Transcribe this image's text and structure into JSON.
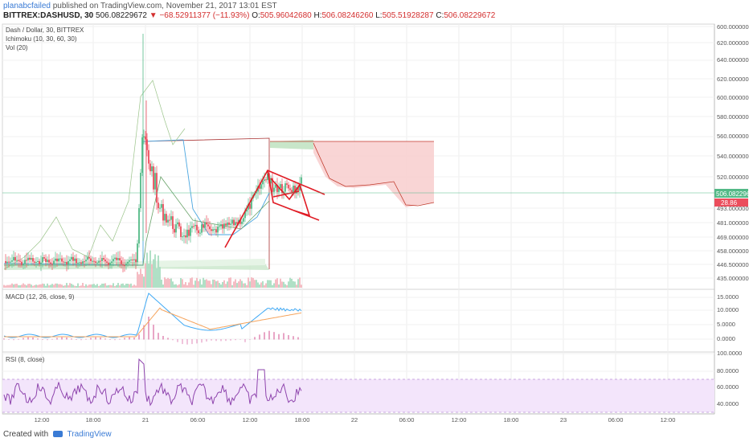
{
  "header": {
    "user": "planabcfailed",
    "published": "published on TradingView.com, November 21, 2017 13:01 EST",
    "symbol": "BITTREX:DASHUSD, 30",
    "price": "506.08229672",
    "change": "▼ −68.52911377 (−11.93%)",
    "o_label": "O:",
    "o_value": "505.96042680",
    "h_label": "H:",
    "h_value": "506.08246260",
    "l_label": "L:",
    "l_value": "505.51928287",
    "c_label": "C:",
    "c_value": "506.08229672"
  },
  "legend": {
    "title": "Dash / Dollar, 30, BITTREX",
    "ichimoku": "Ichimoku (10, 30, 60, 30)",
    "vol": "Vol (20)",
    "macd": "MACD (12, 26, close, 9)",
    "rsi": "RSI (8, close)"
  },
  "footer": {
    "created_with": "Created with",
    "brand": "TradingView"
  },
  "colors": {
    "up": "#53b987",
    "down": "#eb4d5c",
    "pattern": "#e01b24",
    "macd_line": "#3fa9f5",
    "signal_line": "#f5a45d",
    "rsi": "#8e44ad",
    "cloud_bull": "#c8e6c9",
    "cloud_bear": "#f8d0d0"
  },
  "chart_data": {
    "type": "candlestick",
    "price_axis": {
      "ticks": [
        "600.00000000",
        "580.00000000",
        "560.00000000",
        "540.00000000",
        "520.00000000",
        "493.00000000",
        "481.00000000",
        "469.00000000",
        "458.00000000",
        "446.50000000",
        "435.00000000"
      ],
      "top_tick": "600.00000000",
      "current_price_label": "506.08229672",
      "current_volume_label": "28.86"
    },
    "macd_axis": {
      "ticks": [
        "15.0000",
        "10.0000",
        "5.0000",
        "0.0000"
      ]
    },
    "rsi_axis": {
      "ticks": [
        "80.0000",
        "60.0000",
        "40.0000"
      ]
    },
    "time_axis": [
      "12:00",
      "18:00",
      "21",
      "06:00",
      "12:00",
      "18:00",
      "22",
      "06:00",
      "12:00",
      "18:00",
      "23",
      "06:00",
      "12:00"
    ],
    "approx_range": {
      "low": 435,
      "high": 600
    },
    "pattern_annotation": "descending wedge / flag drawn in red around the 12:00–18:00 session on the 21st"
  }
}
